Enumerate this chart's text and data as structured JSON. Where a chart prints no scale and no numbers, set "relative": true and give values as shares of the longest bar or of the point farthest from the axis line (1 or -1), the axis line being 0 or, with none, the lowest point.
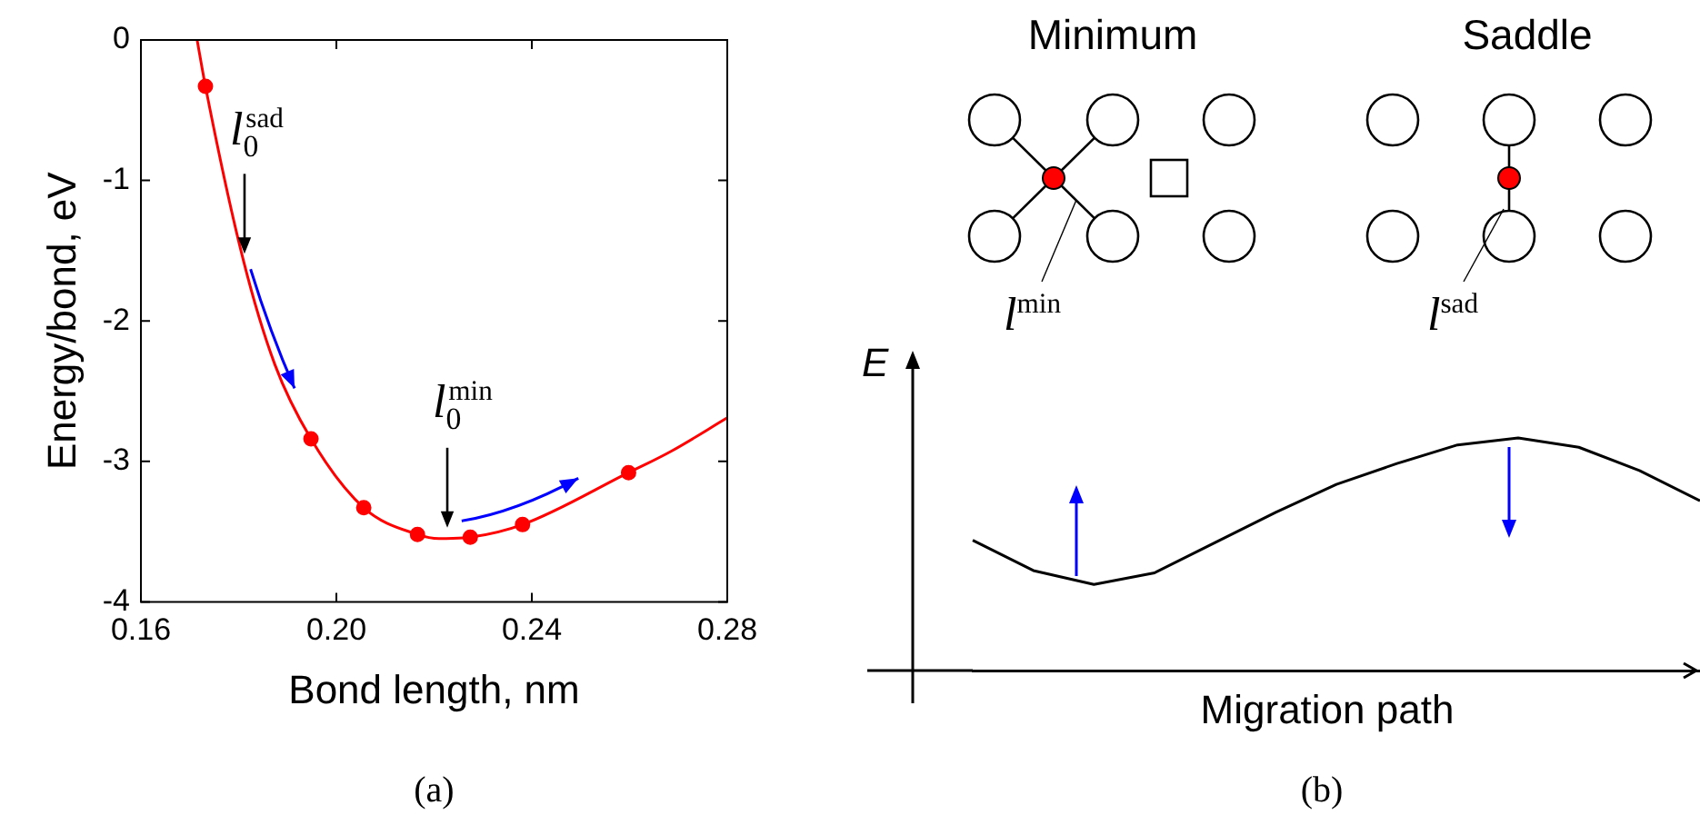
{
  "chart_data": [
    {
      "type": "line",
      "xlabel": "Bond length, nm",
      "ylabel": "Energy/bond, eV",
      "xlim": [
        0.16,
        0.28
      ],
      "xticks": [
        0.16,
        {
          "value": 0.2,
          "label": "0.20"
        },
        0.24,
        0.28
      ],
      "ylim": [
        -4,
        0
      ],
      "yticks": [
        -4,
        -3,
        -2,
        -1,
        0
      ],
      "grid": false,
      "series": [
        {
          "type": "line",
          "color": "#ff0000",
          "marker": "none",
          "x": [
            0.1715,
            0.1732,
            0.1809,
            0.1874,
            0.1948,
            0.2056,
            0.2166,
            0.221,
            0.2274,
            0.2381,
            0.2598,
            0.2684,
            0.28
          ],
          "values": [
            0,
            -0.33,
            -1.56,
            -2.31,
            -2.84,
            -3.33,
            -3.52,
            -3.55,
            -3.54,
            -3.45,
            -3.08,
            -2.93,
            -2.69
          ]
        },
        {
          "type": "scatter",
          "color": "#ff0000",
          "marker": "circle",
          "x": [
            0.1732,
            0.1948,
            0.2056,
            0.2166,
            0.2274,
            0.2381,
            0.2598
          ],
          "values": [
            -0.33,
            -2.84,
            -3.33,
            -3.52,
            -3.54,
            -3.45,
            -3.08
          ]
        }
      ],
      "annotations": [
        {
          "text": "l$_{0}$$^{sad}$",
          "x": 0.1812,
          "y": -1.6
        },
        {
          "text": "l$_{0}$$^{min}$",
          "x": 0.2227,
          "y": -3.55
        },
        "(a)"
      ]
    },
    {
      "type": "line",
      "relative": true,
      "xlabel": "Migration path",
      "ylabel": "E",
      "categories": [
        null,
        null,
        null,
        null,
        null,
        null,
        null,
        null,
        null,
        null,
        null,
        null,
        null
      ],
      "series": [
        {
          "color": "#000000",
          "marker": "none",
          "values": [
            0.56,
            0.43,
            0.37,
            0.42,
            0.55,
            0.68,
            0.8,
            0.89,
            0.97,
            1.0,
            0.96,
            0.86,
            0.73
          ]
        }
      ],
      "annotations": [
        "Minimum",
        "Saddle",
        "l$^{min}$",
        "l$^{sad}$",
        "(b)"
      ]
    }
  ]
}
